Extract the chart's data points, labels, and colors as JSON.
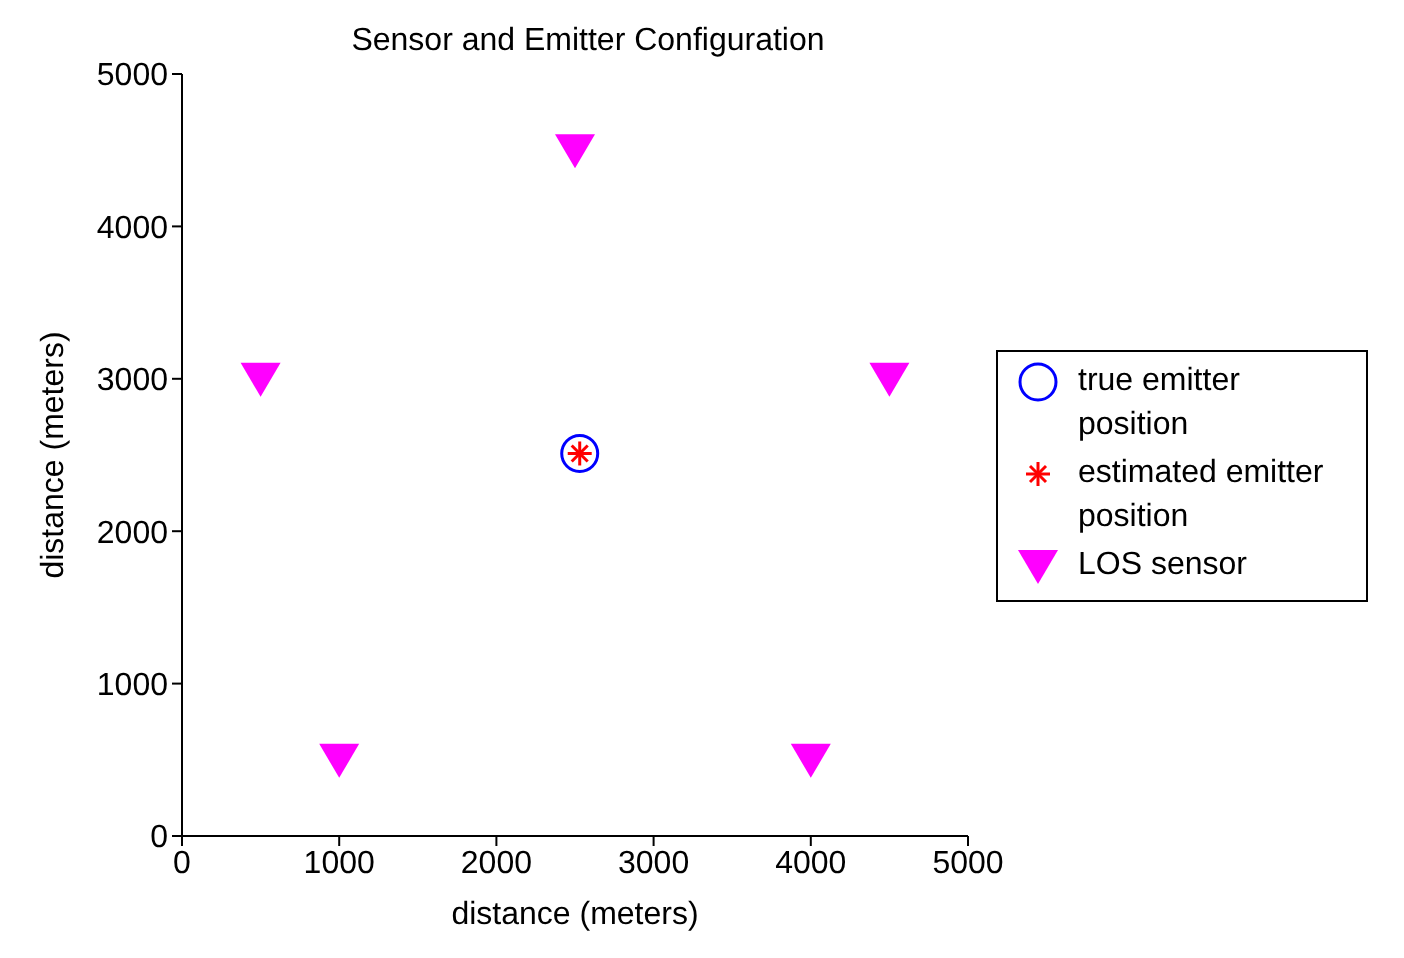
{
  "chart_data": {
    "type": "scatter",
    "title": "Sensor and Emitter Configuration",
    "xlabel": "distance (meters)",
    "ylabel": "distance (meters)",
    "xlim": [
      0,
      5000
    ],
    "xticks": [
      0,
      1000,
      2000,
      3000,
      4000,
      5000
    ],
    "ylim": [
      0,
      5000
    ],
    "yticks": [
      0,
      1000,
      2000,
      3000,
      4000,
      5000
    ],
    "grid": false,
    "legend": "right",
    "series": [
      {
        "name": "true emitter position",
        "color": "#0000ff",
        "marker": "circle",
        "x": [
          2530
        ],
        "values": [
          2510
        ]
      },
      {
        "name": "estimated emitter position",
        "color": "#ff0000",
        "marker": "cross",
        "x": [
          2530
        ],
        "values": [
          2510
        ]
      },
      {
        "name": "LOS sensor",
        "color": "#ff00ff",
        "marker": "triangle",
        "x": [
          500,
          1000,
          2500,
          4000,
          4500
        ],
        "values": [
          3000,
          500,
          4500,
          500,
          3000
        ]
      }
    ]
  }
}
